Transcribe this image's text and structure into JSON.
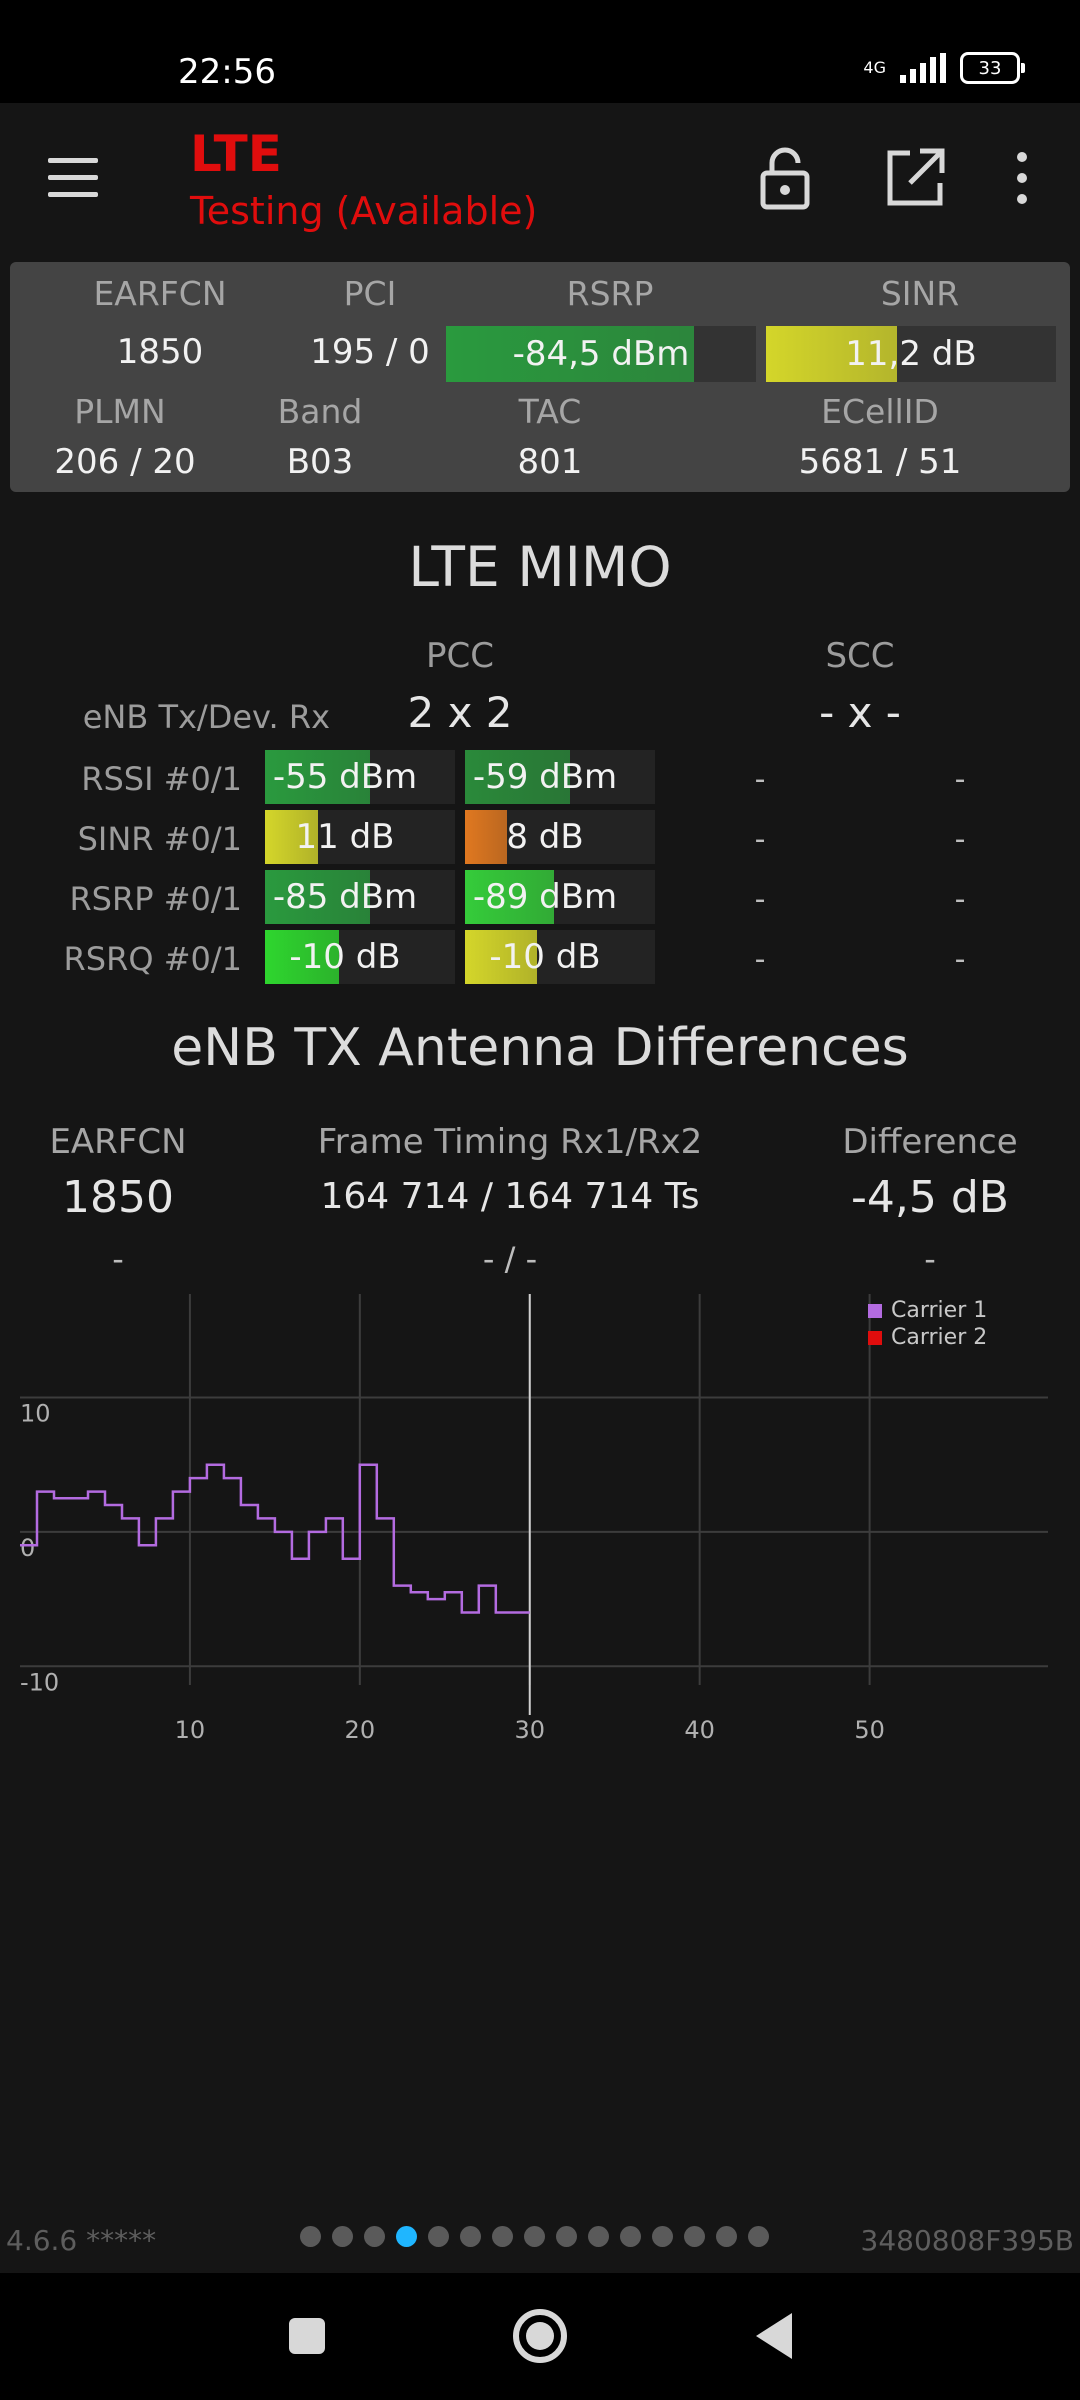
{
  "status_bar": {
    "time": "22:56",
    "network_type": "4G",
    "battery": "33"
  },
  "app_bar": {
    "title": "LTE",
    "subtitle": "Testing (Available)"
  },
  "cell_info": {
    "labels": {
      "earfcn": "EARFCN",
      "pci": "PCI",
      "rsrp": "RSRP",
      "sinr": "SINR",
      "plmn": "PLMN",
      "band": "Band",
      "tac": "TAC",
      "ecellid": "ECellID"
    },
    "earfcn": "1850",
    "pci": "195 / 0",
    "rsrp": {
      "text": "-84,5 dBm",
      "fill": 0.8,
      "color": "#2a9a3e"
    },
    "sinr": {
      "text": "11,2 dB",
      "fill": 0.45,
      "color": "#d4d62a"
    },
    "plmn": "206 / 20",
    "band": "B03",
    "tac": "801",
    "ecellid": "5681 / 51"
  },
  "mimo": {
    "title": "LTE MIMO",
    "pcc_label": "PCC",
    "scc_label": "SCC",
    "tx_rx_label": "eNB Tx/Dev. Rx",
    "pcc_config": "2 x 2",
    "scc_config": "- x -",
    "rows": [
      {
        "label": "RSSI #0/1",
        "v0": {
          "text": "-55 dBm",
          "fill": 0.55,
          "color": "#2a9a3e"
        },
        "v1": {
          "text": "-59 dBm",
          "fill": 0.55,
          "color": "#2a8a3a"
        },
        "scc0": "-",
        "scc1": "-"
      },
      {
        "label": "SINR #0/1",
        "v0": {
          "text": "11 dB",
          "fill": 0.28,
          "color": "#d4d62a"
        },
        "v1": {
          "text": "8 dB",
          "fill": 0.22,
          "color": "#e07820"
        },
        "scc0": "-",
        "scc1": "-"
      },
      {
        "label": "RSRP #0/1",
        "v0": {
          "text": "-85 dBm",
          "fill": 0.55,
          "color": "#2a9a3e"
        },
        "v1": {
          "text": "-89 dBm",
          "fill": 0.47,
          "color": "#35cc3a"
        },
        "scc0": "-",
        "scc1": "-"
      },
      {
        "label": "RSRQ #0/1",
        "v0": {
          "text": "-10 dB",
          "fill": 0.39,
          "color": "#2ed62e"
        },
        "v1": {
          "text": "-10 dB",
          "fill": 0.38,
          "color": "#d4d62a"
        },
        "scc0": "-",
        "scc1": "-"
      }
    ]
  },
  "antenna_diff": {
    "title": "eNB TX Antenna Differences",
    "earfcn_label": "EARFCN",
    "timing_label": "Frame Timing Rx1/Rx2",
    "difference_label": "Difference",
    "earfcn": "1850",
    "timing": "164 714 / 164 714 Ts",
    "difference": "-4,5 dB",
    "row2_earfcn": "-",
    "row2_timing": "- / -",
    "row2_difference": "-"
  },
  "chart_data": {
    "type": "line",
    "x_ticks": [
      10,
      20,
      30,
      40,
      50
    ],
    "y_ticks": [
      10,
      0,
      -10
    ],
    "xlim": [
      0,
      60.5
    ],
    "ylim": [
      -14,
      18
    ],
    "cursor_x": 30,
    "legend_position": "top-right",
    "series": [
      {
        "name": "Carrier 1",
        "color": "#b36be0",
        "x": [
          0,
          1,
          2,
          3,
          4,
          5,
          6,
          7,
          8,
          9,
          10,
          11,
          12,
          13,
          14,
          15,
          16,
          17,
          18,
          19,
          20,
          21,
          22,
          23,
          24,
          25,
          26,
          27,
          28,
          29
        ],
        "y": [
          -1,
          3,
          2.5,
          2.5,
          3,
          2,
          1,
          -1,
          1,
          3,
          4,
          5,
          4,
          2,
          1,
          0,
          -2,
          0,
          1,
          -2,
          5,
          1,
          -4,
          -4.5,
          -5,
          -4.5,
          -6,
          -4,
          -6,
          -6
        ]
      },
      {
        "name": "Carrier 2",
        "color": "#e00d0d",
        "x": [],
        "y": []
      }
    ]
  },
  "footer": {
    "version": "4.6.6 *****",
    "device_id": "3480808F395B",
    "page_count": 15,
    "active_page": 3
  }
}
